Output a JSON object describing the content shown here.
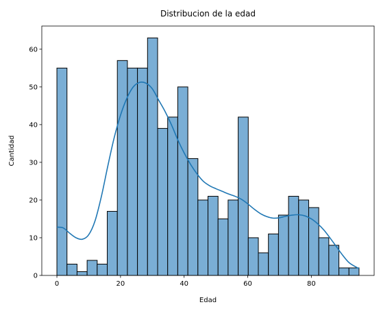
{
  "chart_data": {
    "type": "bar",
    "title": "Distribucion de la edad",
    "xlabel": "Edad",
    "ylabel": "Cantidad",
    "bin_width": 3.1667,
    "bin_start": 0,
    "bins": [
      {
        "x0": 0.0,
        "count": 55
      },
      {
        "x0": 3.17,
        "count": 3
      },
      {
        "x0": 6.33,
        "count": 1
      },
      {
        "x0": 9.5,
        "count": 4
      },
      {
        "x0": 12.67,
        "count": 3
      },
      {
        "x0": 15.83,
        "count": 17
      },
      {
        "x0": 19.0,
        "count": 57
      },
      {
        "x0": 22.17,
        "count": 55
      },
      {
        "x0": 25.33,
        "count": 55
      },
      {
        "x0": 28.5,
        "count": 63
      },
      {
        "x0": 31.67,
        "count": 39
      },
      {
        "x0": 34.83,
        "count": 42
      },
      {
        "x0": 38.0,
        "count": 50
      },
      {
        "x0": 41.17,
        "count": 31
      },
      {
        "x0": 44.33,
        "count": 20
      },
      {
        "x0": 47.5,
        "count": 21
      },
      {
        "x0": 50.67,
        "count": 15
      },
      {
        "x0": 53.83,
        "count": 20
      },
      {
        "x0": 57.0,
        "count": 42
      },
      {
        "x0": 60.17,
        "count": 10
      },
      {
        "x0": 63.33,
        "count": 6
      },
      {
        "x0": 66.5,
        "count": 11
      },
      {
        "x0": 69.67,
        "count": 16
      },
      {
        "x0": 72.83,
        "count": 21
      },
      {
        "x0": 76.0,
        "count": 20
      },
      {
        "x0": 79.17,
        "count": 18
      },
      {
        "x0": 82.33,
        "count": 10
      },
      {
        "x0": 85.5,
        "count": 8
      },
      {
        "x0": 88.67,
        "count": 2
      },
      {
        "x0": 91.83,
        "count": 2
      }
    ],
    "kde": {
      "x": [
        0,
        2,
        4,
        6,
        8,
        10,
        12,
        14,
        16,
        18,
        20,
        22,
        24,
        26,
        28,
        30,
        32,
        34,
        36,
        38,
        40,
        42,
        44,
        46,
        48,
        50,
        52,
        54,
        56,
        58,
        60,
        62,
        64,
        66,
        68,
        70,
        72,
        74,
        76,
        78,
        80,
        82,
        84,
        86,
        88,
        90,
        92,
        95
      ],
      "y": [
        12.8,
        12.6,
        11.2,
        10.0,
        9.6,
        10.8,
        14.5,
        21.0,
        29.0,
        36.5,
        42.5,
        47.0,
        50.0,
        51.2,
        51.0,
        49.5,
        46.5,
        43.5,
        40.0,
        36.0,
        32.5,
        29.5,
        27.0,
        25.0,
        23.8,
        23.0,
        22.3,
        21.6,
        21.0,
        20.2,
        19.0,
        17.6,
        16.4,
        15.6,
        15.2,
        15.3,
        15.7,
        16.0,
        16.1,
        15.8,
        15.0,
        13.7,
        12.0,
        9.8,
        7.5,
        5.2,
        3.3,
        1.8
      ]
    },
    "xlim": [
      -4.75,
      99.75
    ],
    "ylim": [
      0,
      66.15
    ],
    "x_ticks": [
      0,
      20,
      40,
      60,
      80
    ],
    "y_ticks": [
      0,
      10,
      20,
      30,
      40,
      50,
      60
    ],
    "bar_color": "#7aaed5",
    "bar_edge_color": "#000000",
    "line_color": "#1f77b4",
    "grid": false,
    "legend": "none"
  }
}
